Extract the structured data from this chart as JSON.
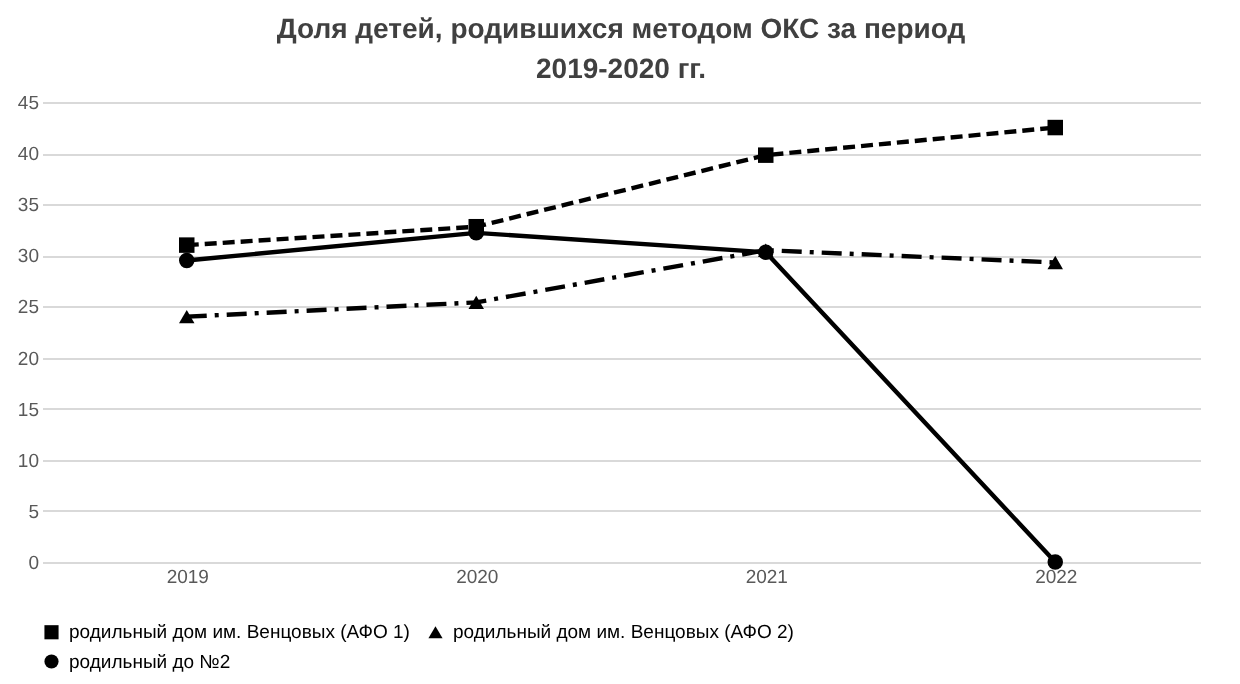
{
  "chart_data": {
    "type": "line",
    "title": "Доля детей, родившихся методом ОКС за период 2019-2020 гг.",
    "categories": [
      "2019",
      "2020",
      "2021",
      "2022"
    ],
    "series": [
      {
        "name": "родильный дом им. Венцовых (АФО 1)",
        "color": "#000000",
        "values": [
          31,
          32.8,
          39.8,
          42.5
        ],
        "marker": "square",
        "line_style": "dashed"
      },
      {
        "name": "родильный дом им. Венцовых (АФО 2)",
        "color": "#000000",
        "values": [
          24,
          25.4,
          30.5,
          29.3
        ],
        "marker": "triangle",
        "line_style": "dotted"
      },
      {
        "name": "родильный до №2",
        "color": "#000000",
        "values": [
          29.5,
          32.2,
          30.3,
          0
        ],
        "marker": "circle",
        "line_style": "solid"
      }
    ],
    "ylim": [
      0,
      45
    ],
    "yticks": [
      0,
      5,
      10,
      15,
      20,
      25,
      30,
      35,
      40,
      45
    ],
    "grid": "y",
    "legend": "bottom"
  }
}
